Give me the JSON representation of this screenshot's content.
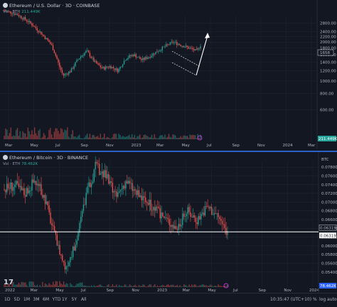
{
  "panes": [
    {
      "title": "Ethereum / U.S. Dollar · 3D · COINBASE",
      "vol_label": "Vol · ETH",
      "vol_value": "211.449K",
      "price_badge": "1658",
      "vol_badge": "211.449K",
      "chart_data": {
        "type": "candlestick",
        "y_axis": "log",
        "ylim": [
          480,
          3200
        ],
        "yticks": [
          "2800.00",
          "2400.00",
          "2200.00",
          "2000.00",
          "1800.00",
          "1600.00",
          "1400.00",
          "1200.00",
          "1000.00",
          "800.00",
          "600.00"
        ],
        "xticks": [
          "Mar",
          "May",
          "Jul",
          "Sep",
          "Nov",
          "2023",
          "Mar",
          "May",
          "Jul",
          "Sep",
          "Nov",
          "2024",
          "Mar"
        ],
        "trend_path": [
          [
            0,
            3500
          ],
          [
            3,
            3300
          ],
          [
            6,
            2900
          ],
          [
            9,
            2400
          ],
          [
            12,
            1900
          ],
          [
            14,
            1300
          ],
          [
            15,
            1100
          ],
          [
            17,
            1200
          ],
          [
            19,
            1500
          ],
          [
            21,
            1700
          ],
          [
            23,
            1400
          ],
          [
            25,
            1250
          ],
          [
            27,
            1300
          ],
          [
            29,
            1200
          ],
          [
            31,
            1500
          ],
          [
            33,
            1600
          ],
          [
            35,
            1450
          ],
          [
            37,
            1550
          ],
          [
            39,
            1700
          ],
          [
            41,
            1850
          ],
          [
            43,
            2000
          ],
          [
            45,
            1900
          ],
          [
            47,
            1800
          ],
          [
            49,
            1700
          ],
          [
            50,
            1900
          ]
        ],
        "close": 1658,
        "projection_target": 2550
      }
    },
    {
      "title": "Ethereum / Bitcoin · 3D · BINANCE",
      "vol_label": "Vol · ETH",
      "vol_value": "78.462K",
      "price_badge": "0.06319",
      "price_badge2": "0.06319",
      "vol_badge": "78.462K",
      "chart_data": {
        "type": "candlestick",
        "ylim": [
          0.0525,
          0.0795
        ],
        "yticks": [
          "BTC",
          "0.07800",
          "0.07600",
          "0.07400",
          "0.07200",
          "0.07000",
          "0.06800",
          "0.06600",
          "0.06400",
          "0.06200",
          "0.06000",
          "0.05800",
          "0.05600",
          "0.05400"
        ],
        "xticks": [
          "2022",
          "Mar",
          "May",
          "Jul",
          "Sep",
          "Nov",
          "2023",
          "Mar",
          "May",
          "Jul",
          "Sep",
          "Nov",
          "2024"
        ],
        "support_level": 0.06319,
        "trend_path": [
          [
            0,
            0.073
          ],
          [
            2,
            0.074
          ],
          [
            4,
            0.072
          ],
          [
            6,
            0.075
          ],
          [
            8,
            0.071
          ],
          [
            10,
            0.062
          ],
          [
            12,
            0.055
          ],
          [
            14,
            0.06
          ],
          [
            16,
            0.071
          ],
          [
            18,
            0.078
          ],
          [
            20,
            0.076
          ],
          [
            22,
            0.071
          ],
          [
            24,
            0.075
          ],
          [
            26,
            0.072
          ],
          [
            28,
            0.07
          ],
          [
            30,
            0.068
          ],
          [
            32,
            0.066
          ],
          [
            34,
            0.064
          ],
          [
            36,
            0.068
          ],
          [
            38,
            0.066
          ],
          [
            40,
            0.069
          ],
          [
            42,
            0.067
          ],
          [
            44,
            0.063
          ]
        ]
      }
    }
  ],
  "bottom_bar": {
    "timeframes": [
      "1D",
      "5D",
      "1M",
      "3M",
      "6M",
      "YTD",
      "1Y",
      "5Y",
      "All"
    ],
    "clock": "10:35:47 (UTC+10)",
    "options": [
      "%",
      "log",
      "auto"
    ]
  },
  "colors": {
    "up": "#26a69a",
    "down": "#ef5350",
    "bg": "#131722",
    "grid": "#1f2430",
    "axis": "#b2b5be"
  }
}
